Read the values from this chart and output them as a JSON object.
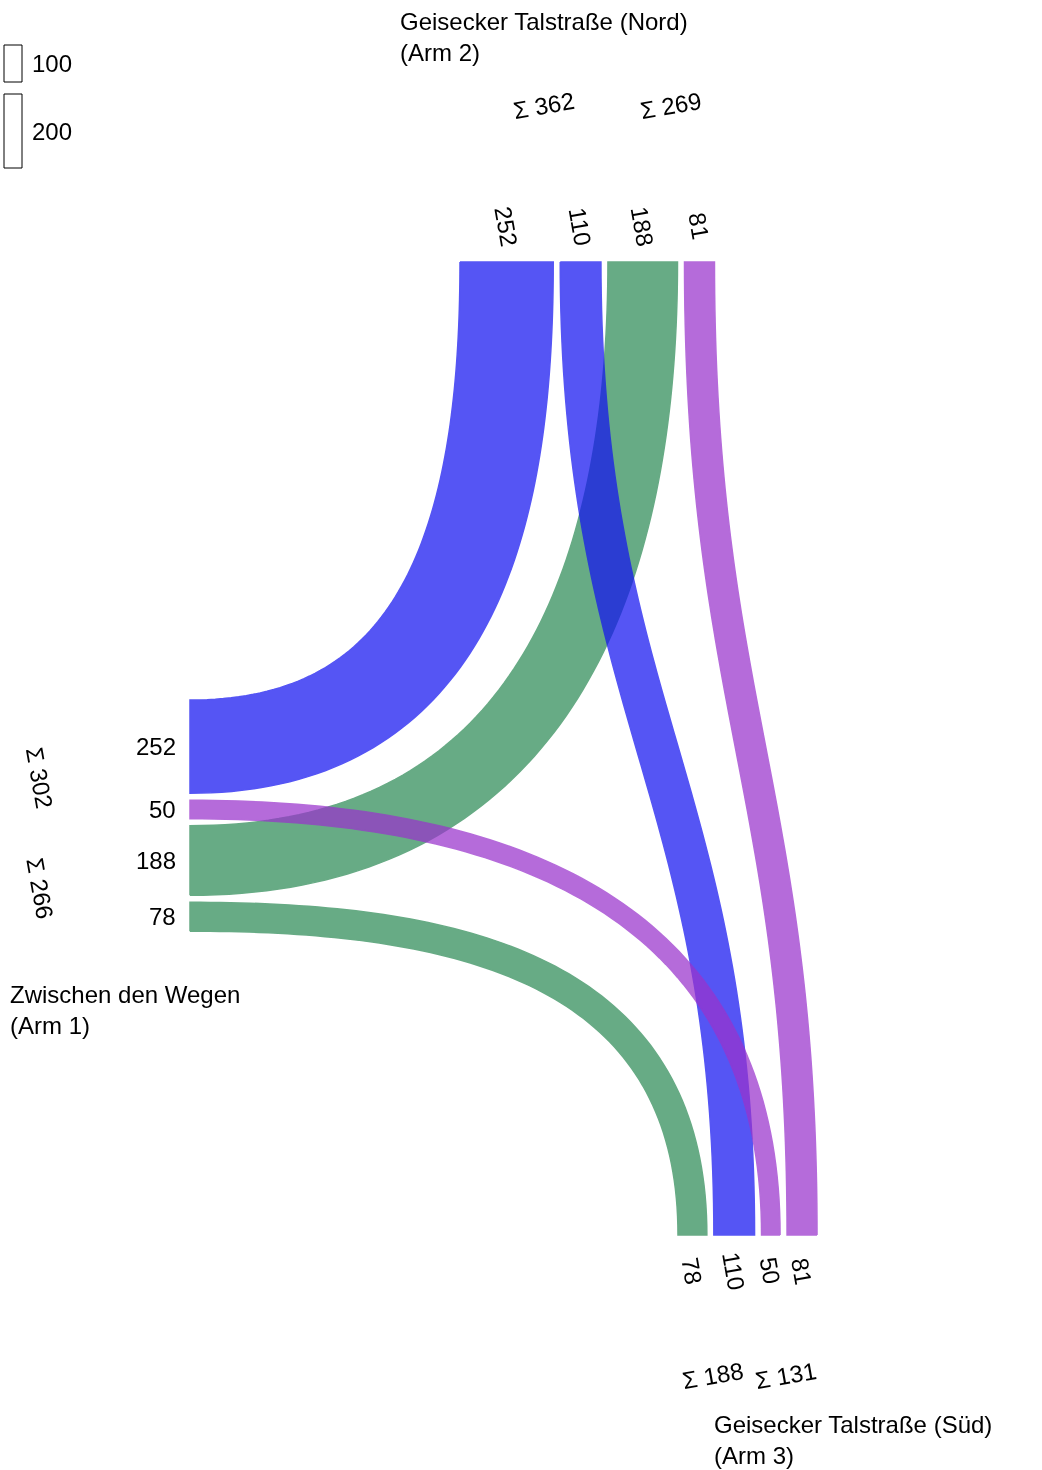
{
  "chart_data": {
    "type": "other",
    "categories": [
      "Zwischen den Wegen\n(Arm 1)",
      "Geisecker Talstraße (Nord)\n(Arm 2)",
      "Geisecker Talstraße (Süd)\n(Arm 3)"
    ],
    "series": [
      {
        "color": "#2e8b57",
        "values": [
          null,
          188,
          78
        ]
      },
      {
        "color": "#1414f0",
        "values": [
          252,
          null,
          110
        ]
      },
      {
        "color": "#9933cc",
        "values": [
          50,
          81,
          null
        ]
      }
    ],
    "totals": [
      "Σ 302",
      "Σ 266",
      "Σ 362",
      "Σ 269",
      "Σ 188",
      "Σ 131"
    ],
    "data_labels": true,
    "annotations": [
      "100",
      "200",
      "188",
      "78",
      "252",
      "110",
      "50",
      "81"
    ]
  }
}
